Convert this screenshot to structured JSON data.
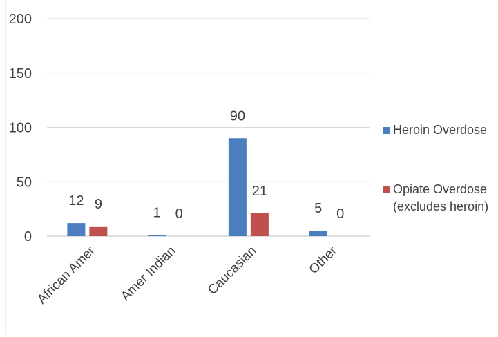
{
  "chart_data": {
    "type": "bar",
    "categories": [
      "African Amer",
      "Amer Indian",
      "Caucasian",
      "Other"
    ],
    "series": [
      {
        "name": "Heroin Overdose",
        "values": [
          12,
          1,
          90,
          5
        ],
        "color": "#4a7ebf"
      },
      {
        "name": "Opiate Overdose (excludes heroin)",
        "name_lines": [
          "Opiate Overdose",
          "(excludes heroin)"
        ],
        "values": [
          9,
          0,
          21,
          0
        ],
        "color": "#c0504d"
      }
    ],
    "yticks": [
      0,
      50,
      100,
      150,
      200
    ],
    "ylim": [
      0,
      200
    ],
    "grid": true,
    "legend": "right",
    "data_labels": true
  }
}
